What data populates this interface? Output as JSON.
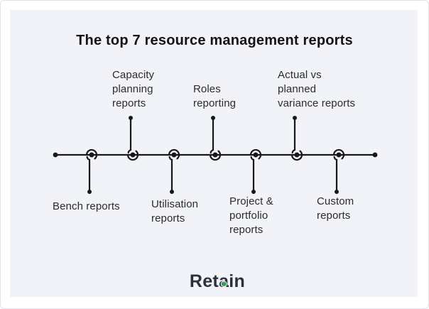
{
  "title": "The top 7 resource management reports",
  "diagram": {
    "nodes": [
      {
        "id": "bench",
        "label_lines": [
          "Bench reports"
        ],
        "position": "below"
      },
      {
        "id": "capacity",
        "label_lines": [
          "Capacity",
          "planning",
          "reports"
        ],
        "position": "above"
      },
      {
        "id": "utilisation",
        "label_lines": [
          "Utilisation",
          "reports"
        ],
        "position": "below"
      },
      {
        "id": "roles",
        "label_lines": [
          "Roles",
          "reporting"
        ],
        "position": "above"
      },
      {
        "id": "project",
        "label_lines": [
          "Project &",
          "portfolio",
          "reports"
        ],
        "position": "below"
      },
      {
        "id": "actual",
        "label_lines": [
          "Actual vs",
          "planned",
          "variance reports"
        ],
        "position": "above"
      },
      {
        "id": "custom",
        "label_lines": [
          "Custom",
          "reports"
        ],
        "position": "below"
      }
    ]
  },
  "logo": {
    "prefix": "Ret",
    "accent_letter": "a",
    "suffix": "in",
    "accent_color": "#2f9e58"
  },
  "colors": {
    "panel_bg": "#f2f3f8",
    "line": "#17181c",
    "title_text": "#141418",
    "label_text": "#2a2b2f",
    "logo_text": "#2b313c"
  }
}
